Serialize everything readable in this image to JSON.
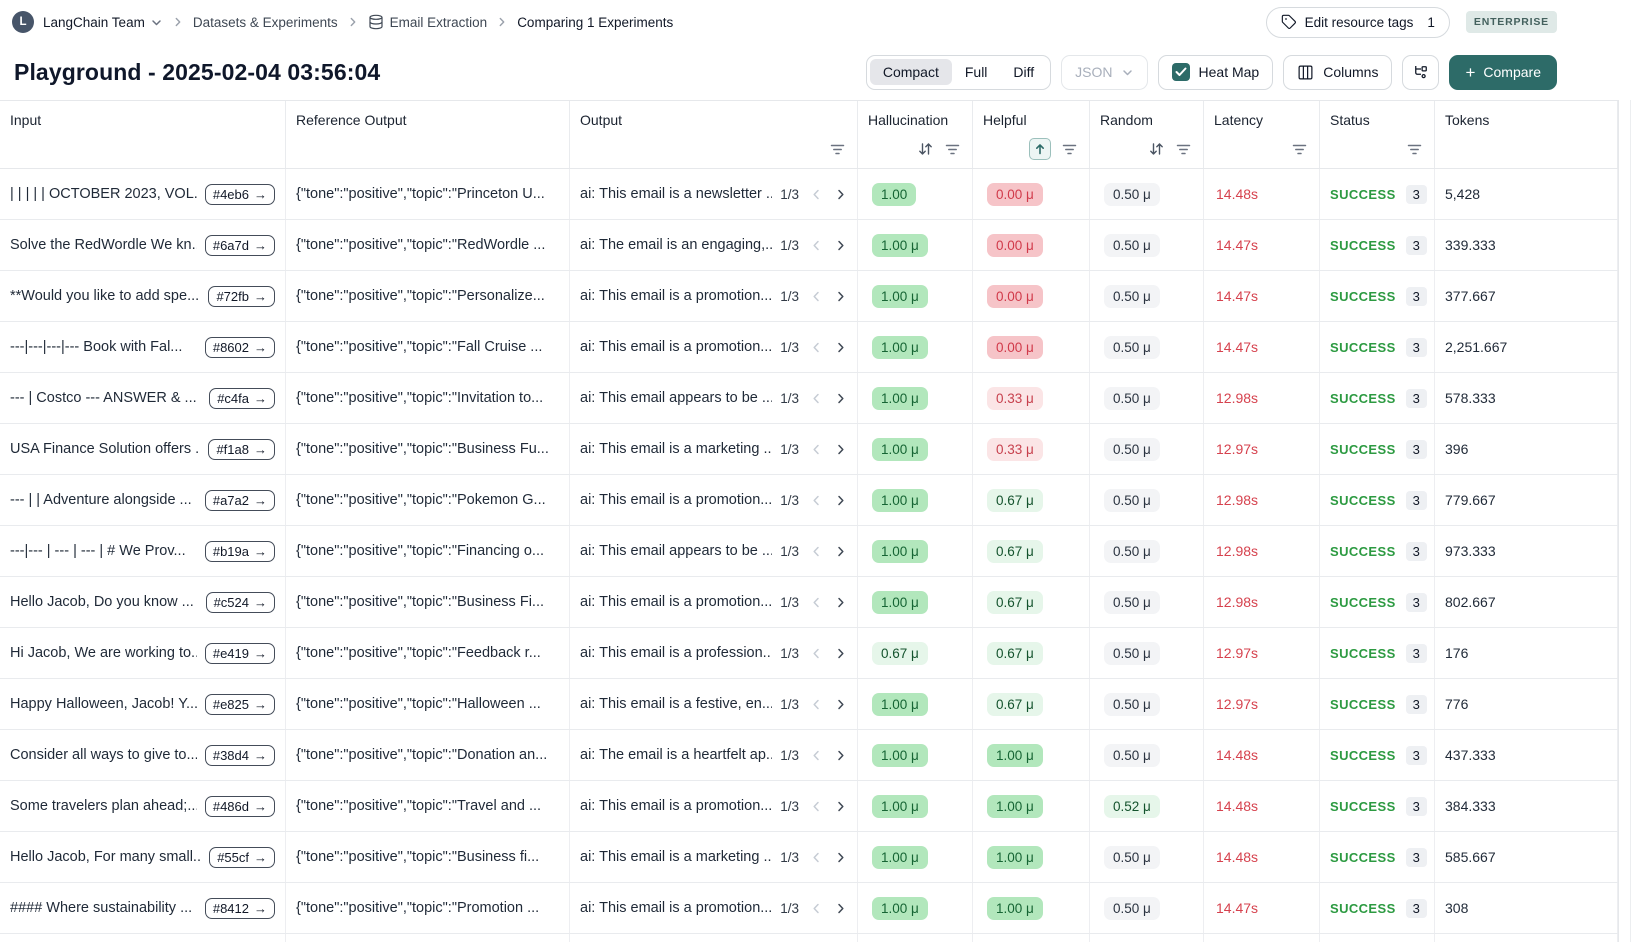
{
  "breadcrumb": {
    "team_initial": "L",
    "team": "LangChain Team",
    "items": [
      "Datasets & Experiments",
      "Email Extraction",
      "Comparing 1 Experiments"
    ]
  },
  "header": {
    "edit_tags_label": "Edit resource tags",
    "edit_tags_count": "1",
    "plan_badge": "ENTERPRISE",
    "title": "Playground - 2025-02-04 03:56:04"
  },
  "toolbar": {
    "view_modes": [
      "Compact",
      "Full",
      "Diff"
    ],
    "active_view": "Compact",
    "format_select": "JSON",
    "heatmap_label": "Heat Map",
    "heatmap_checked": true,
    "columns_label": "Columns",
    "compare_label": "Compare"
  },
  "colors": {
    "accent_teal": "#2d6b68",
    "success_green": "#2c9a41",
    "latency_red": "#d6424e",
    "score_green_bg": "#b2e7bc",
    "score_green_light_bg": "#e6f6ea",
    "score_red_bg": "#f6c4c8",
    "score_red_light_bg": "#fbe5e6",
    "score_gray_bg": "#f3f4f6",
    "enterprise_badge_bg": "#dfe9e7"
  },
  "table": {
    "columns": [
      {
        "label": "Input",
        "sort": "none",
        "filter": false
      },
      {
        "label": "Reference Output",
        "sort": "none",
        "filter": false
      },
      {
        "label": "Output",
        "sort": "none",
        "filter": true
      },
      {
        "label": "Hallucination",
        "sort": "both",
        "filter": true
      },
      {
        "label": "Helpful",
        "sort": "asc-active",
        "filter": true
      },
      {
        "label": "Random",
        "sort": "both",
        "filter": true
      },
      {
        "label": "Latency",
        "sort": "none",
        "filter": true
      },
      {
        "label": "Status",
        "sort": "none",
        "filter": true
      },
      {
        "label": "Tokens",
        "sort": "none",
        "filter": false
      }
    ],
    "rows": [
      {
        "id": "#4eb6",
        "input": "| | | | | OCTOBER 2023, VOL...",
        "ref": "{\"tone\":\"positive\",\"topic\":\"Princeton U...",
        "out": "ai: This email is a newsletter ...",
        "page": "1/3",
        "hall": {
          "v": "1.00",
          "t": "g"
        },
        "help": {
          "v": "0.00 μ",
          "t": "r"
        },
        "rand": {
          "v": "0.50 μ",
          "t": "gy"
        },
        "latency": "14.48s",
        "status": "SUCCESS",
        "runs": "3",
        "tokens": "5,428"
      },
      {
        "id": "#6a7d",
        "input": "Solve the RedWordle We kn...",
        "ref": "{\"tone\":\"positive\",\"topic\":\"RedWordle ...",
        "out": "ai: The email is an engaging,...",
        "page": "1/3",
        "hall": {
          "v": "1.00 μ",
          "t": "g"
        },
        "help": {
          "v": "0.00 μ",
          "t": "r"
        },
        "rand": {
          "v": "0.50 μ",
          "t": "gy"
        },
        "latency": "14.47s",
        "status": "SUCCESS",
        "runs": "3",
        "tokens": "339.333"
      },
      {
        "id": "#72fb",
        "input": "**Would you like to add spe...",
        "ref": "{\"tone\":\"positive\",\"topic\":\"Personalize...",
        "out": "ai: This email is a promotion...",
        "page": "1/3",
        "hall": {
          "v": "1.00 μ",
          "t": "g"
        },
        "help": {
          "v": "0.00 μ",
          "t": "r"
        },
        "rand": {
          "v": "0.50 μ",
          "t": "gy"
        },
        "latency": "14.47s",
        "status": "SUCCESS",
        "runs": "3",
        "tokens": "377.667"
      },
      {
        "id": "#8602",
        "input": "---|---|---|--- Book with Fal...",
        "ref": "{\"tone\":\"positive\",\"topic\":\"Fall Cruise ...",
        "out": "ai: This email is a promotion...",
        "page": "1/3",
        "hall": {
          "v": "1.00 μ",
          "t": "g"
        },
        "help": {
          "v": "0.00 μ",
          "t": "r"
        },
        "rand": {
          "v": "0.50 μ",
          "t": "gy"
        },
        "latency": "14.47s",
        "status": "SUCCESS",
        "runs": "3",
        "tokens": "2,251.667"
      },
      {
        "id": "#c4fa",
        "input": "--- | Costco --- ANSWER & ...",
        "ref": "{\"tone\":\"positive\",\"topic\":\"Invitation to...",
        "out": "ai: This email appears to be ...",
        "page": "1/3",
        "hall": {
          "v": "1.00 μ",
          "t": "g"
        },
        "help": {
          "v": "0.33 μ",
          "t": "rl"
        },
        "rand": {
          "v": "0.50 μ",
          "t": "gy"
        },
        "latency": "12.98s",
        "status": "SUCCESS",
        "runs": "3",
        "tokens": "578.333"
      },
      {
        "id": "#f1a8",
        "input": "USA Finance Solution offers ...",
        "ref": "{\"tone\":\"positive\",\"topic\":\"Business Fu...",
        "out": "ai: This email is a marketing ...",
        "page": "1/3",
        "hall": {
          "v": "1.00 μ",
          "t": "g"
        },
        "help": {
          "v": "0.33 μ",
          "t": "rl"
        },
        "rand": {
          "v": "0.50 μ",
          "t": "gy"
        },
        "latency": "12.97s",
        "status": "SUCCESS",
        "runs": "3",
        "tokens": "396"
      },
      {
        "id": "#a7a2",
        "input": "--- | | Adventure alongside ...",
        "ref": "{\"tone\":\"positive\",\"topic\":\"Pokemon G...",
        "out": "ai: This email is a promotion...",
        "page": "1/3",
        "hall": {
          "v": "1.00 μ",
          "t": "g"
        },
        "help": {
          "v": "0.67 μ",
          "t": "gl"
        },
        "rand": {
          "v": "0.50 μ",
          "t": "gy"
        },
        "latency": "12.98s",
        "status": "SUCCESS",
        "runs": "3",
        "tokens": "779.667"
      },
      {
        "id": "#b19a",
        "input": "---|--- | --- | --- | # We Prov...",
        "ref": "{\"tone\":\"positive\",\"topic\":\"Financing o...",
        "out": "ai: This email appears to be ...",
        "page": "1/3",
        "hall": {
          "v": "1.00 μ",
          "t": "g"
        },
        "help": {
          "v": "0.67 μ",
          "t": "gl"
        },
        "rand": {
          "v": "0.50 μ",
          "t": "gy"
        },
        "latency": "12.98s",
        "status": "SUCCESS",
        "runs": "3",
        "tokens": "973.333"
      },
      {
        "id": "#c524",
        "input": "Hello Jacob, Do you know ...",
        "ref": "{\"tone\":\"positive\",\"topic\":\"Business Fi...",
        "out": "ai: This email is a promotion...",
        "page": "1/3",
        "hall": {
          "v": "1.00 μ",
          "t": "g"
        },
        "help": {
          "v": "0.67 μ",
          "t": "gl"
        },
        "rand": {
          "v": "0.50 μ",
          "t": "gy"
        },
        "latency": "12.98s",
        "status": "SUCCESS",
        "runs": "3",
        "tokens": "802.667"
      },
      {
        "id": "#e419",
        "input": "Hi Jacob, We are working to...",
        "ref": "{\"tone\":\"positive\",\"topic\":\"Feedback r...",
        "out": "ai: This email is a profession...",
        "page": "1/3",
        "hall": {
          "v": "0.67 μ",
          "t": "gl"
        },
        "help": {
          "v": "0.67 μ",
          "t": "gl"
        },
        "rand": {
          "v": "0.50 μ",
          "t": "gy"
        },
        "latency": "12.97s",
        "status": "SUCCESS",
        "runs": "3",
        "tokens": "176"
      },
      {
        "id": "#e825",
        "input": "Happy Halloween, Jacob! Y...",
        "ref": "{\"tone\":\"positive\",\"topic\":\"Halloween ...",
        "out": "ai: This email is a festive, en...",
        "page": "1/3",
        "hall": {
          "v": "1.00 μ",
          "t": "g"
        },
        "help": {
          "v": "0.67 μ",
          "t": "gl"
        },
        "rand": {
          "v": "0.50 μ",
          "t": "gy"
        },
        "latency": "12.97s",
        "status": "SUCCESS",
        "runs": "3",
        "tokens": "776"
      },
      {
        "id": "#38d4",
        "input": "Consider all ways to give to...",
        "ref": "{\"tone\":\"positive\",\"topic\":\"Donation an...",
        "out": "ai: The email is a heartfelt ap...",
        "page": "1/3",
        "hall": {
          "v": "1.00 μ",
          "t": "g"
        },
        "help": {
          "v": "1.00 μ",
          "t": "g"
        },
        "rand": {
          "v": "0.50 μ",
          "t": "gy"
        },
        "latency": "14.48s",
        "status": "SUCCESS",
        "runs": "3",
        "tokens": "437.333"
      },
      {
        "id": "#486d",
        "input": "Some travelers plan ahead;...",
        "ref": "{\"tone\":\"positive\",\"topic\":\"Travel and ...",
        "out": "ai: This email is a promotion...",
        "page": "1/3",
        "hall": {
          "v": "1.00 μ",
          "t": "g"
        },
        "help": {
          "v": "1.00 μ",
          "t": "g"
        },
        "rand": {
          "v": "0.52 μ",
          "t": "gl"
        },
        "latency": "14.48s",
        "status": "SUCCESS",
        "runs": "3",
        "tokens": "384.333"
      },
      {
        "id": "#55cf",
        "input": "Hello Jacob, For many small...",
        "ref": "{\"tone\":\"positive\",\"topic\":\"Business fi...",
        "out": "ai: This email is a marketing ...",
        "page": "1/3",
        "hall": {
          "v": "1.00 μ",
          "t": "g"
        },
        "help": {
          "v": "1.00 μ",
          "t": "g"
        },
        "rand": {
          "v": "0.50 μ",
          "t": "gy"
        },
        "latency": "14.48s",
        "status": "SUCCESS",
        "runs": "3",
        "tokens": "585.667"
      },
      {
        "id": "#8412",
        "input": "#### Where sustainability ...",
        "ref": "{\"tone\":\"positive\",\"topic\":\"Promotion ...",
        "out": "ai: This email is a promotion...",
        "page": "1/3",
        "hall": {
          "v": "1.00 μ",
          "t": "g"
        },
        "help": {
          "v": "1.00 μ",
          "t": "g"
        },
        "rand": {
          "v": "0.50 μ",
          "t": "gy"
        },
        "latency": "14.47s",
        "status": "SUCCESS",
        "runs": "3",
        "tokens": "308"
      }
    ]
  }
}
